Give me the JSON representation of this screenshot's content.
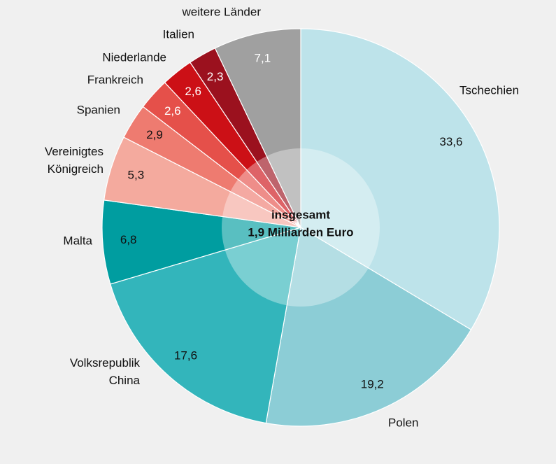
{
  "chart_data": {
    "type": "pie",
    "categories": [
      "Tschechien",
      "Polen",
      "Volksrepublik China",
      "Malta",
      "Vereinigtes Königreich",
      "Spanien",
      "Frankreich",
      "Niederlande",
      "Italien",
      "weitere Länder"
    ],
    "values": [
      33.6,
      19.2,
      17.6,
      6.8,
      5.3,
      2.9,
      2.6,
      2.6,
      2.3,
      7.1
    ],
    "value_labels": [
      "33,6",
      "19,2",
      "17,6",
      "6,8",
      "5,3",
      "2,9",
      "2,6",
      "2,6",
      "2,3",
      "7,1"
    ],
    "colors": [
      "#bde3ea",
      "#8ccdd6",
      "#33b5bb",
      "#009da0",
      "#f4aa9e",
      "#ee7b70",
      "#e5504a",
      "#cc1016",
      "#9b111e",
      "#a0a0a0"
    ],
    "annotations": [
      "insgesamt",
      "1,9 Milliarden Euro"
    ]
  }
}
